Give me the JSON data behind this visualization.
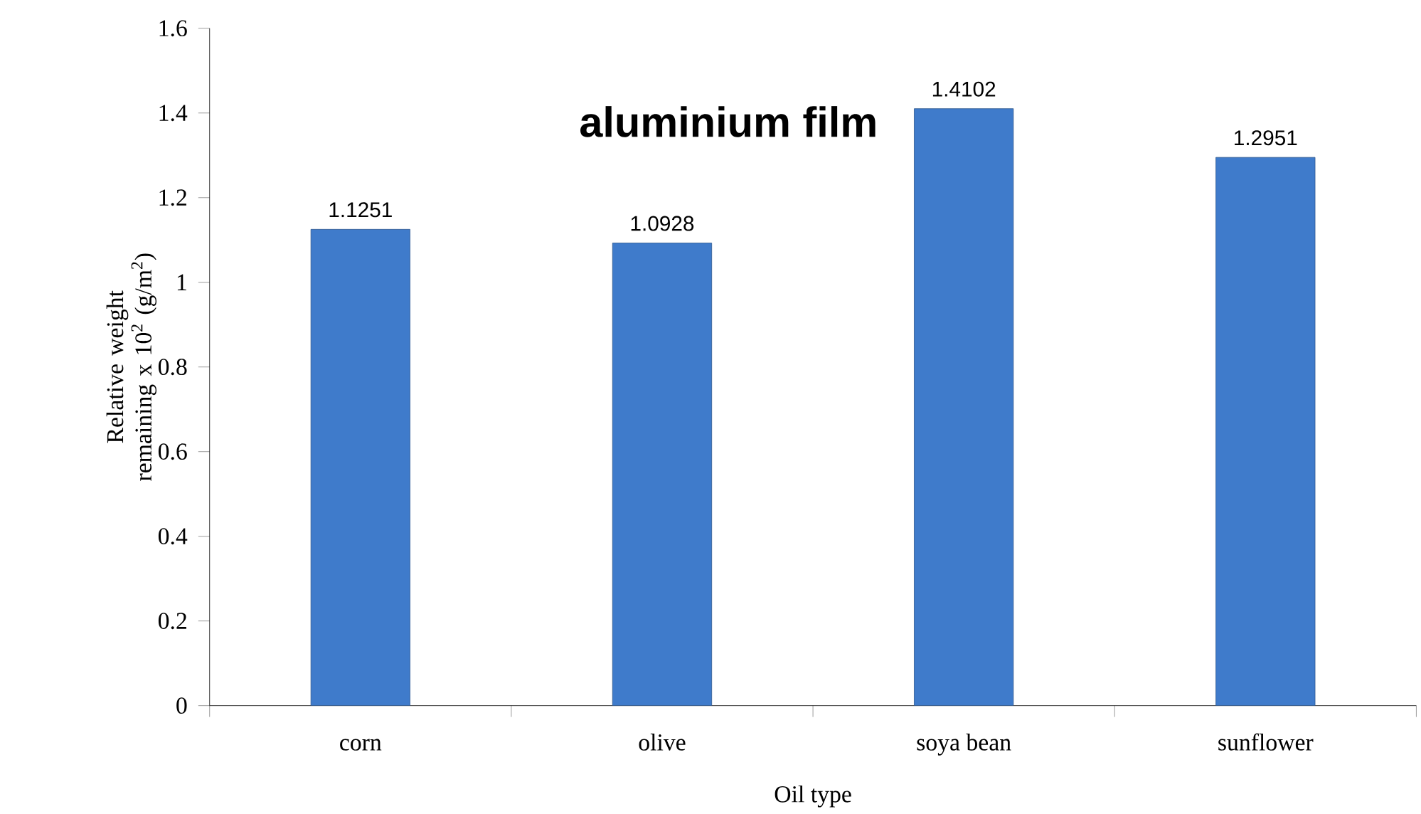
{
  "chart_data": {
    "type": "bar",
    "title": "aluminium film",
    "xlabel": "Oil type",
    "ylabel": "Relative weight remaining x 10$^{2}$ (g/m$^{2}$)",
    "categories": [
      "corn",
      "olive",
      "soya bean",
      "sunflower"
    ],
    "values": [
      1.1251,
      1.0928,
      1.4102,
      1.2951
    ],
    "color": "#3f7bcb",
    "ylim": [
      0,
      1.6
    ],
    "yticks": [
      0,
      0.2,
      0.4,
      0.6,
      0.8,
      1,
      1.2,
      1.4,
      1.6
    ],
    "data_labels": true
  }
}
